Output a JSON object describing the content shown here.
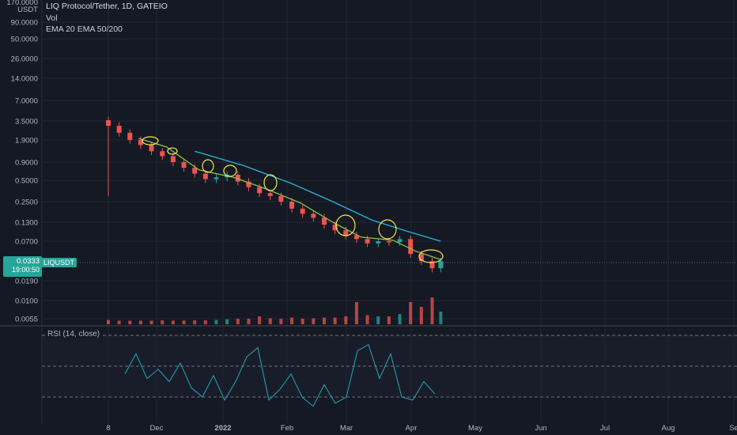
{
  "header": {
    "symbol_title": "LIQ Protocol/Tether, 1D, GATEIO",
    "vol_label": "Vol",
    "ema_label": "EMA 20 EMA 50/200"
  },
  "price_axis": {
    "top_label": "170.0000",
    "unit": "USDT",
    "ticks": [
      "90.0000",
      "50.0000",
      "26.0000",
      "14.0000",
      "7.0000",
      "3.5000",
      "1.9000",
      "0.9000",
      "0.5000",
      "0.2500",
      "0.1300",
      "0.0700",
      "0.0190",
      "0.0100",
      "0.0055"
    ]
  },
  "current_price": {
    "value": "0.0333",
    "countdown": "19:00:50",
    "symbol": "LIQUSDT"
  },
  "rsi": {
    "label": "RSI (14, close)"
  },
  "time_axis": {
    "labels": [
      "8",
      "Dec",
      "2022",
      "Feb",
      "Mar",
      "Apr",
      "May",
      "Jun",
      "Jul",
      "Aug",
      "Se"
    ]
  },
  "colors": {
    "background": "#151924",
    "grid": "#232734",
    "up": "#26a69a",
    "down": "#ef5350",
    "ema20": "#8bc34a",
    "ema200": "#29b6d8",
    "rsi_line": "#26a6b8",
    "annotation": "#f5e64a",
    "price_badge": "#26a69a"
  },
  "chart_data": {
    "type": "candlestick",
    "title": "LIQ Protocol/Tether, 1D, GATEIO",
    "scale": "log",
    "ylim": [
      0.004,
      170
    ],
    "x": [
      "2021-11-08",
      "2021-11-13",
      "2021-11-18",
      "2021-11-23",
      "2021-11-28",
      "2021-12-03",
      "2021-12-08",
      "2021-12-13",
      "2021-12-18",
      "2021-12-23",
      "2021-12-28",
      "2022-01-02",
      "2022-01-07",
      "2022-01-12",
      "2022-01-17",
      "2022-01-22",
      "2022-01-27",
      "2022-02-01",
      "2022-02-06",
      "2022-02-11",
      "2022-02-16",
      "2022-02-21",
      "2022-02-26",
      "2022-03-03",
      "2022-03-08",
      "2022-03-13",
      "2022-03-18",
      "2022-03-23",
      "2022-03-28",
      "2022-04-02",
      "2022-04-07",
      "2022-04-11"
    ],
    "close": [
      3.0,
      2.4,
      1.9,
      1.6,
      1.3,
      1.1,
      0.9,
      0.75,
      0.62,
      0.52,
      0.55,
      0.6,
      0.48,
      0.4,
      0.33,
      0.3,
      0.25,
      0.2,
      0.17,
      0.15,
      0.12,
      0.1,
      0.085,
      0.075,
      0.065,
      0.07,
      0.068,
      0.075,
      0.045,
      0.035,
      0.028,
      0.035
    ],
    "volume_relative": [
      0.05,
      0.02,
      0.02,
      0.02,
      0.02,
      0.03,
      0.02,
      0.02,
      0.03,
      0.03,
      0.05,
      0.08,
      0.1,
      0.1,
      0.2,
      0.12,
      0.1,
      0.15,
      0.1,
      0.12,
      0.15,
      0.15,
      0.2,
      0.8,
      0.25,
      0.2,
      0.2,
      0.3,
      0.8,
      0.6,
      1.0,
      0.4
    ],
    "series": [
      {
        "name": "EMA 20",
        "points": [
          [
            "2021-11-22",
            2.0
          ],
          [
            "2021-12-05",
            1.5
          ],
          [
            "2021-12-20",
            0.7
          ],
          [
            "2022-01-05",
            0.55
          ],
          [
            "2022-01-20",
            0.38
          ],
          [
            "2022-02-05",
            0.24
          ],
          [
            "2022-02-20",
            0.13
          ],
          [
            "2022-03-05",
            0.08
          ],
          [
            "2022-03-20",
            0.072
          ],
          [
            "2022-03-30",
            0.05
          ],
          [
            "2022-04-11",
            0.037
          ]
        ]
      },
      {
        "name": "EMA 50/200",
        "points": [
          [
            "2021-12-18",
            1.3
          ],
          [
            "2022-01-10",
            0.8
          ],
          [
            "2022-02-01",
            0.45
          ],
          [
            "2022-02-20",
            0.25
          ],
          [
            "2022-03-10",
            0.14
          ],
          [
            "2022-03-25",
            0.1
          ],
          [
            "2022-04-11",
            0.07
          ]
        ]
      }
    ],
    "rsi_range": [
      0,
      100
    ],
    "rsi_levels": [
      70,
      50,
      30
    ]
  }
}
